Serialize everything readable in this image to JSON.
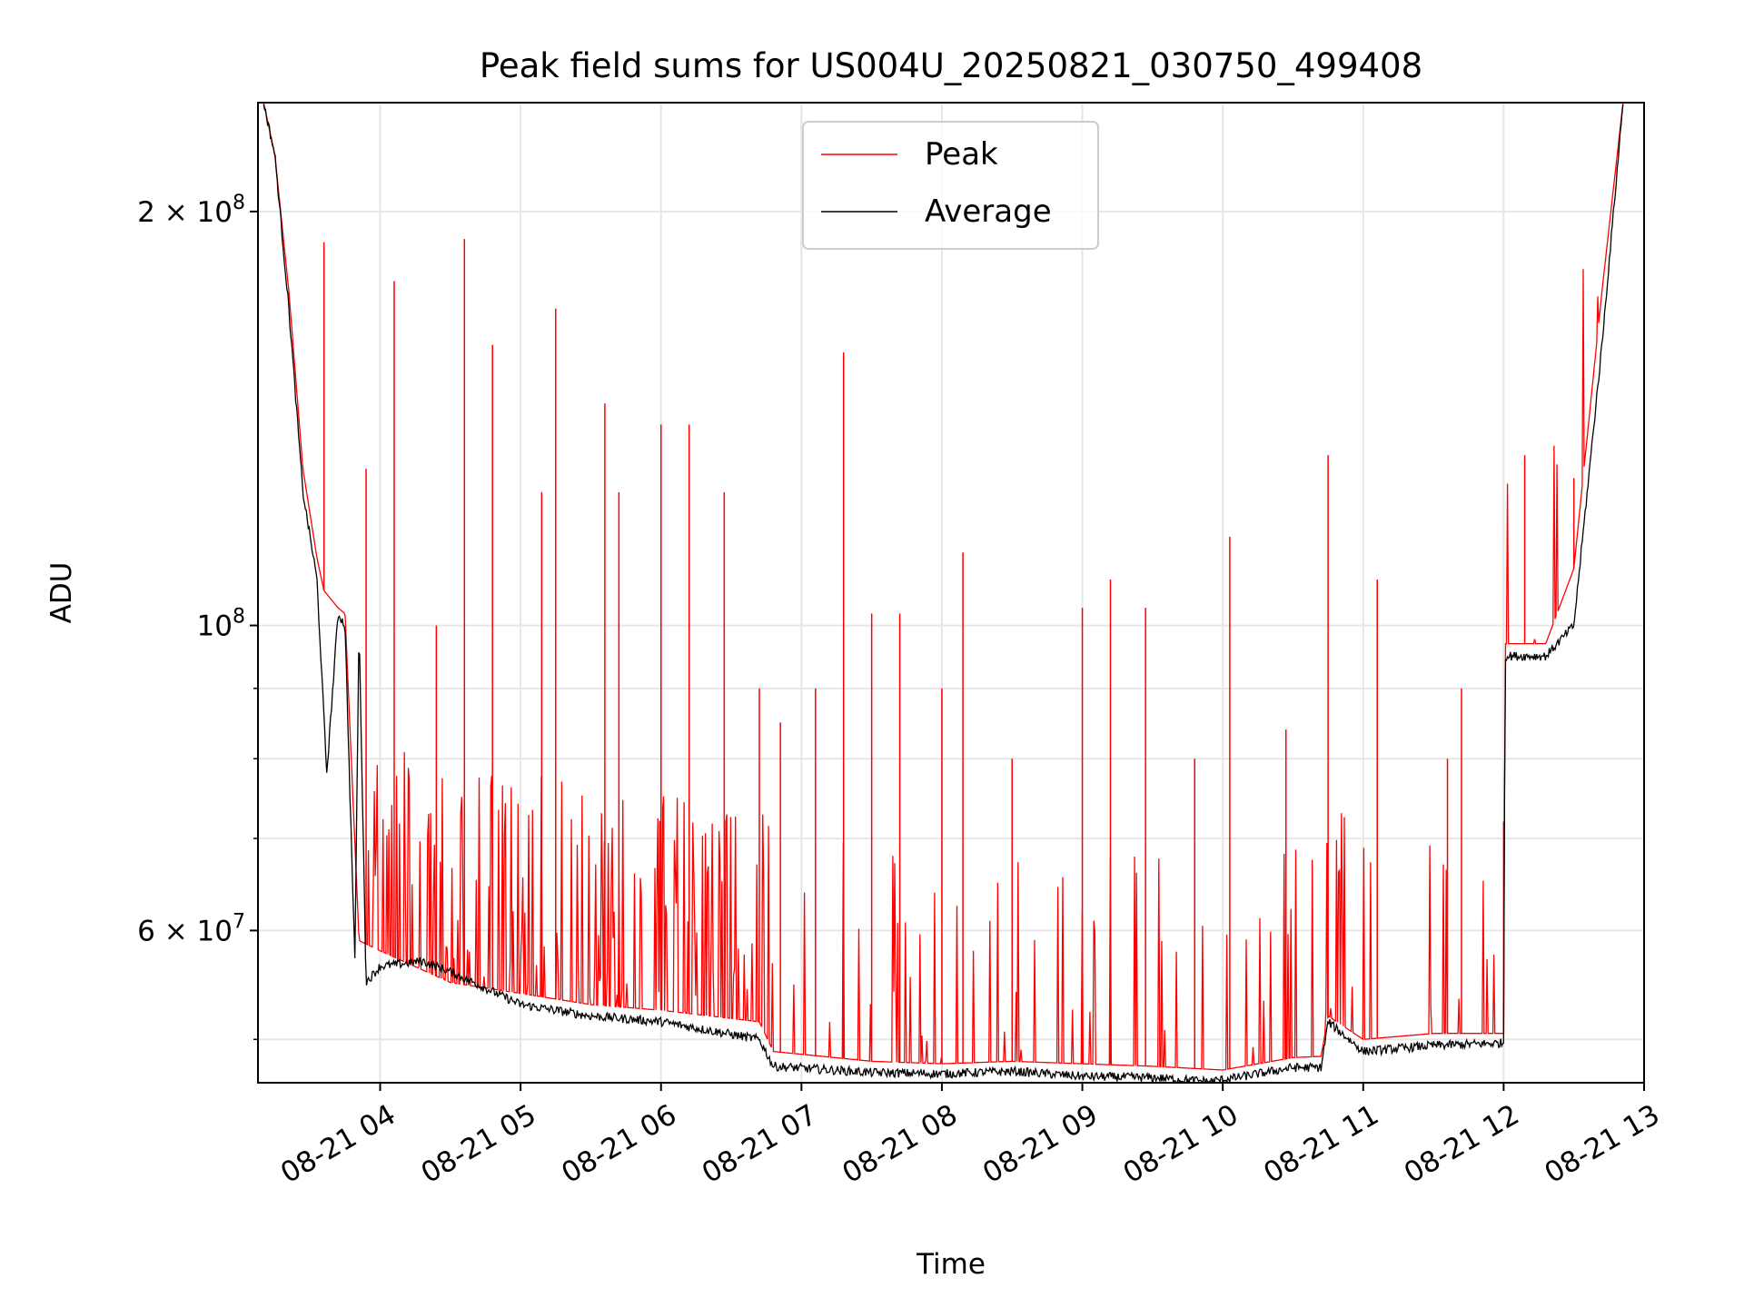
{
  "chart_data": {
    "type": "line",
    "title": "Peak field sums for US004U_20250821_030750_499408",
    "xlabel": "Time",
    "ylabel": "ADU",
    "x_ticks": [
      "08-21 04",
      "08-21 05",
      "08-21 06",
      "08-21 07",
      "08-21 08",
      "08-21 09",
      "08-21 10",
      "08-21 11",
      "08-21 12",
      "08-21 13"
    ],
    "y_ticks": [
      {
        "value": 200000000,
        "label": "2 × 10",
        "exp": "8"
      },
      {
        "value": 100000000,
        "label": "10",
        "exp": "8"
      },
      {
        "value": 60000000,
        "label": "6 × 10",
        "exp": "7"
      }
    ],
    "y_scale": "log",
    "ylim": [
      46500000,
      240000000
    ],
    "xlim_hours": [
      3.13,
      13.0
    ],
    "grid": true,
    "legend_position": "upper center",
    "colors": {
      "peak": "#ff0000",
      "average": "#000000"
    },
    "series": [
      {
        "name": "Peak",
        "description_points": [
          [
            3.17,
            240000000
          ],
          [
            3.25,
            220000000
          ],
          [
            3.35,
            175000000
          ],
          [
            3.45,
            130000000
          ],
          [
            3.55,
            112000000
          ],
          [
            3.6,
            106000000
          ],
          [
            3.7,
            103000000
          ],
          [
            3.75,
            102000000
          ],
          [
            3.85,
            59000000
          ],
          [
            4.0,
            58000000
          ],
          [
            4.5,
            55000000
          ],
          [
            5.0,
            54000000
          ],
          [
            5.5,
            53000000
          ],
          [
            6.0,
            52500000
          ],
          [
            6.7,
            51500000
          ],
          [
            6.8,
            49000000
          ],
          [
            7.5,
            48200000
          ],
          [
            8.0,
            48000000
          ],
          [
            8.5,
            48200000
          ],
          [
            9.0,
            48000000
          ],
          [
            9.5,
            47800000
          ],
          [
            10.0,
            47500000
          ],
          [
            10.5,
            48500000
          ],
          [
            10.7,
            48600000
          ],
          [
            10.75,
            52000000
          ],
          [
            11.0,
            50000000
          ],
          [
            11.5,
            50500000
          ],
          [
            12.0,
            50500000
          ],
          [
            12.01,
            97000000
          ],
          [
            12.3,
            97000000
          ],
          [
            12.5,
            110000000
          ],
          [
            12.7,
            175000000
          ],
          [
            12.85,
            240000000
          ]
        ],
        "spikes": [
          [
            3.6,
            190000000
          ],
          [
            3.9,
            130000000
          ],
          [
            4.1,
            178000000
          ],
          [
            4.4,
            100000000
          ],
          [
            4.6,
            191000000
          ],
          [
            4.8,
            160000000
          ],
          [
            5.15,
            125000000
          ],
          [
            5.25,
            170000000
          ],
          [
            5.6,
            145000000
          ],
          [
            5.7,
            125000000
          ],
          [
            6.0,
            140000000
          ],
          [
            6.2,
            140000000
          ],
          [
            6.45,
            125000000
          ],
          [
            6.7,
            90000000
          ],
          [
            6.85,
            85000000
          ],
          [
            7.1,
            90000000
          ],
          [
            7.3,
            158000000
          ],
          [
            7.5,
            102000000
          ],
          [
            7.7,
            102000000
          ],
          [
            8.0,
            90000000
          ],
          [
            8.15,
            113000000
          ],
          [
            8.5,
            80000000
          ],
          [
            9.0,
            103000000
          ],
          [
            9.2,
            108000000
          ],
          [
            9.45,
            103000000
          ],
          [
            9.8,
            80000000
          ],
          [
            10.05,
            116000000
          ],
          [
            10.45,
            84000000
          ],
          [
            10.75,
            133000000
          ],
          [
            11.1,
            108000000
          ],
          [
            11.6,
            80000000
          ],
          [
            11.7,
            90000000
          ],
          [
            12.0,
            72000000
          ],
          [
            12.15,
            133000000
          ],
          [
            12.5,
            128000000
          ]
        ]
      },
      {
        "name": "Average",
        "description_points": [
          [
            3.17,
            240000000
          ],
          [
            3.25,
            220000000
          ],
          [
            3.35,
            170000000
          ],
          [
            3.45,
            125000000
          ],
          [
            3.55,
            108000000
          ],
          [
            3.62,
            78000000
          ],
          [
            3.7,
            102000000
          ],
          [
            3.75,
            100000000
          ],
          [
            3.82,
            57000000
          ],
          [
            3.85,
            100000000
          ],
          [
            3.9,
            55000000
          ],
          [
            4.0,
            56500000
          ],
          [
            4.3,
            57000000
          ],
          [
            4.5,
            56000000
          ],
          [
            5.0,
            53000000
          ],
          [
            5.5,
            52000000
          ],
          [
            6.0,
            51500000
          ],
          [
            6.7,
            50000000
          ],
          [
            6.8,
            47800000
          ],
          [
            7.5,
            47300000
          ],
          [
            8.0,
            47200000
          ],
          [
            8.5,
            47400000
          ],
          [
            9.0,
            47000000
          ],
          [
            9.5,
            46900000
          ],
          [
            9.9,
            46600000
          ],
          [
            10.1,
            46900000
          ],
          [
            10.5,
            47700000
          ],
          [
            10.7,
            47700000
          ],
          [
            10.75,
            51500000
          ],
          [
            11.0,
            49000000
          ],
          [
            11.5,
            49500000
          ],
          [
            12.0,
            49700000
          ],
          [
            12.01,
            95000000
          ],
          [
            12.3,
            95000000
          ],
          [
            12.5,
            100000000
          ],
          [
            12.7,
            160000000
          ],
          [
            12.85,
            240000000
          ]
        ]
      }
    ]
  }
}
